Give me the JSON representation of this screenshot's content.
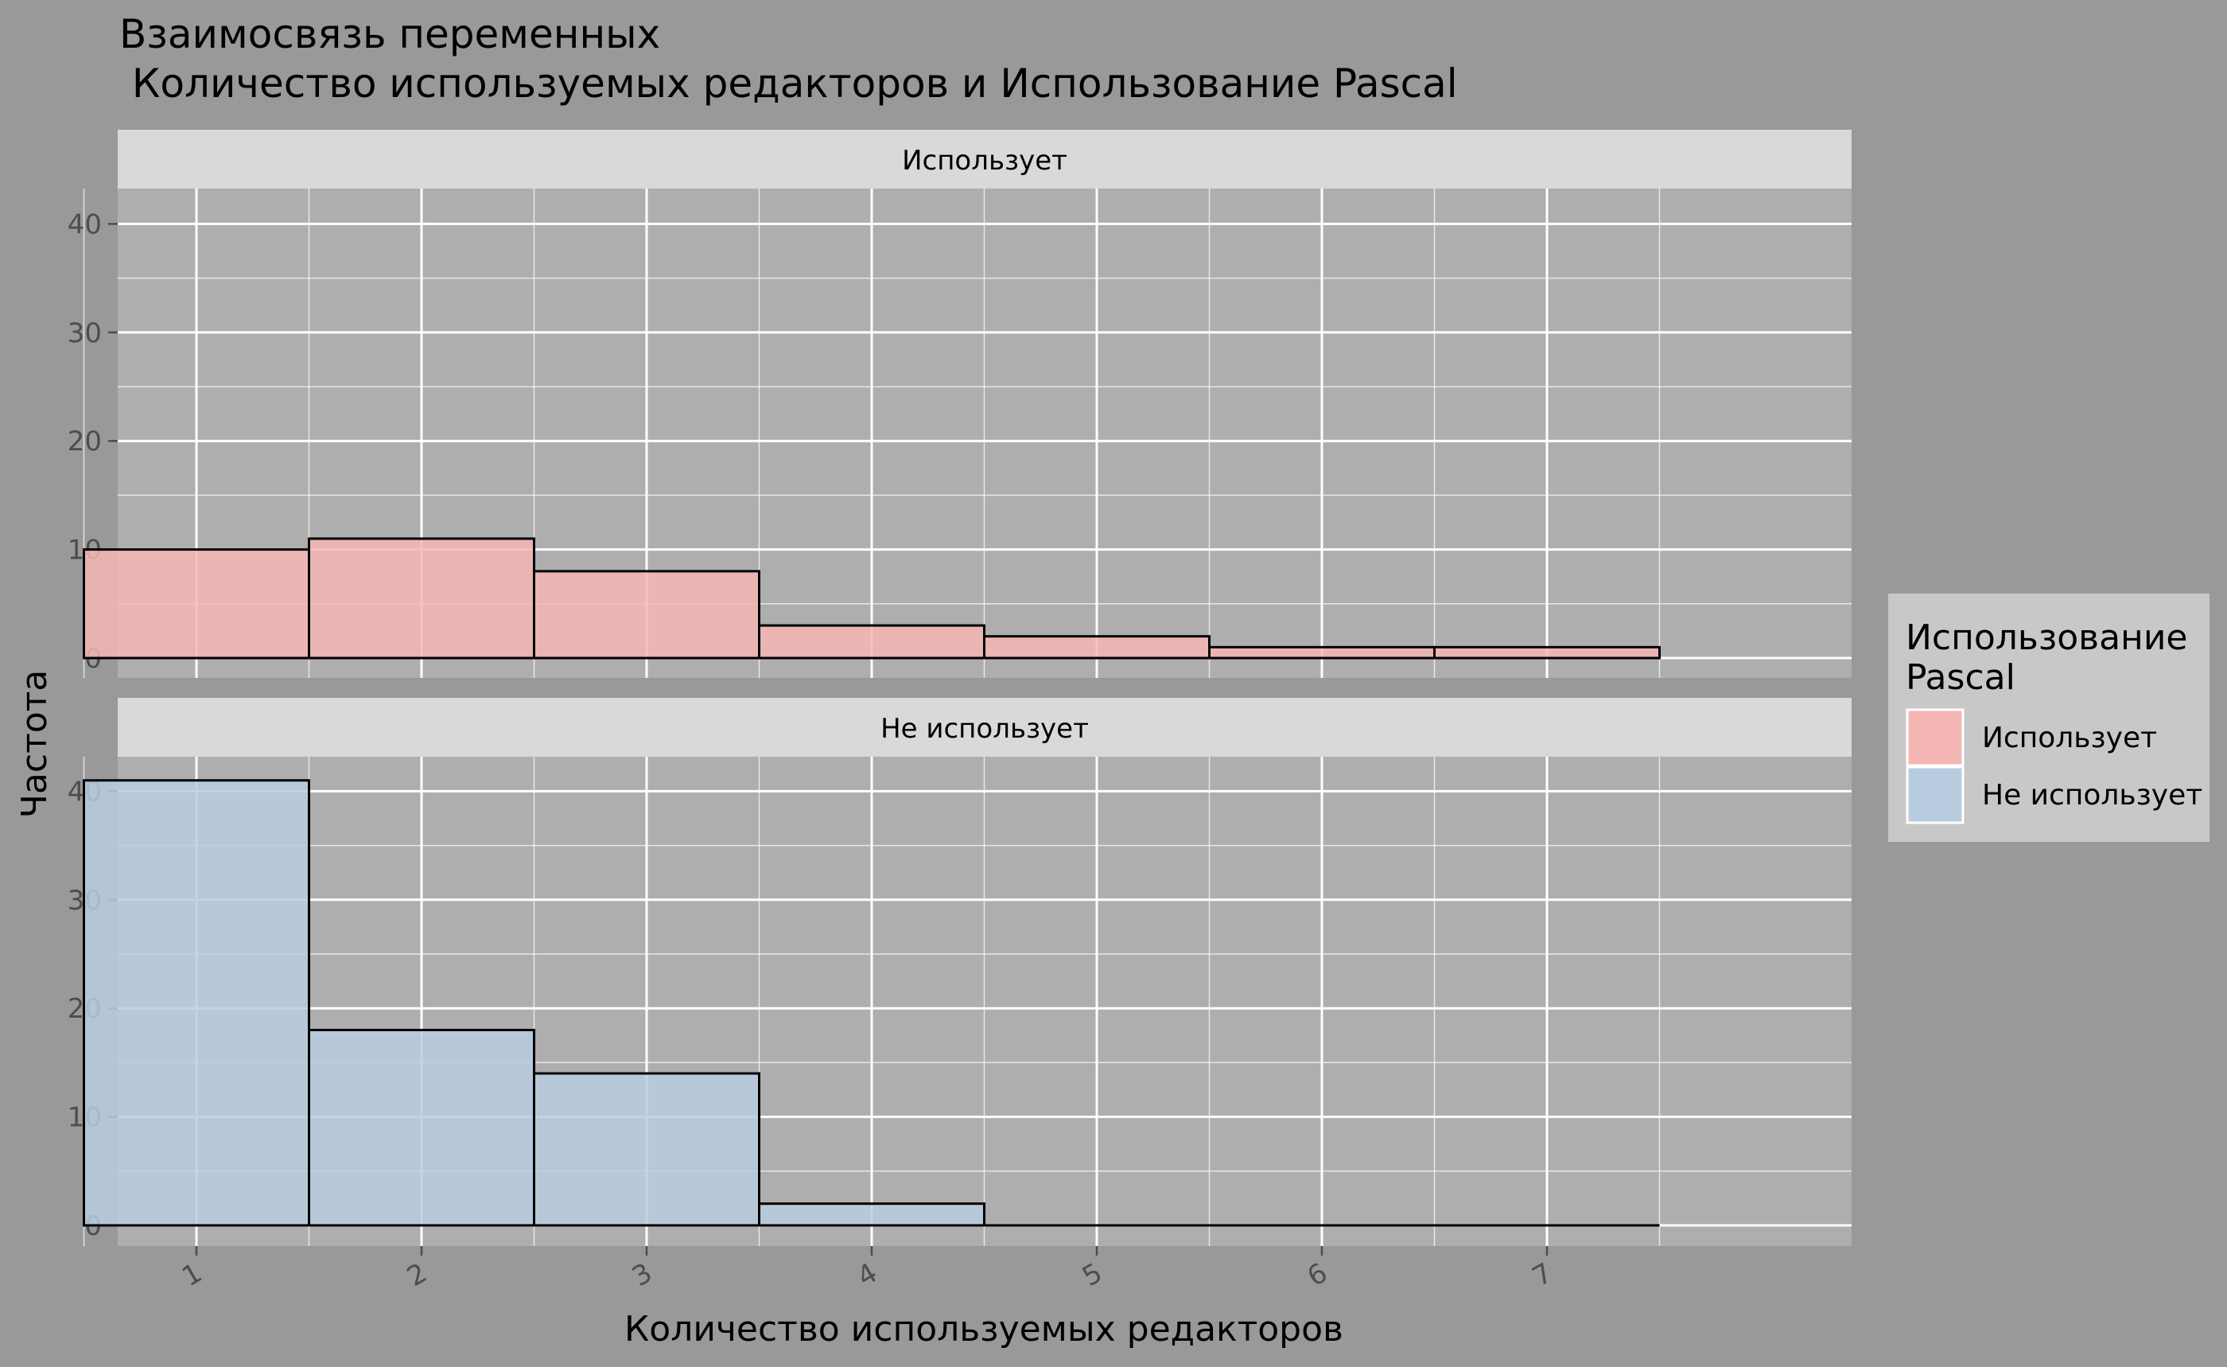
{
  "chart_data": {
    "type": "bar",
    "title": "Взаимосвязь переменных\n Количество используемых редакторов и Использование Pascal",
    "xlabel": "Количество используемых редакторов",
    "ylabel": "Частота",
    "categories": [
      "1",
      "2",
      "3",
      "4",
      "5",
      "6",
      "7"
    ],
    "x": [
      1,
      2,
      3,
      4,
      5,
      6,
      7
    ],
    "ylim": [
      0,
      43
    ],
    "yticks": [
      0,
      10,
      20,
      30,
      40
    ],
    "grid": true,
    "legend_position": "right",
    "legend_title": "Использование\nPascal",
    "facets": [
      {
        "label": "Использует",
        "series": "Использует"
      },
      {
        "label": "Не использует",
        "series": "Не использует"
      }
    ],
    "series": [
      {
        "name": "Использует",
        "color": "#F4B6B3",
        "values": [
          10,
          11,
          8,
          3,
          2,
          1,
          1
        ]
      },
      {
        "name": "Не использует",
        "color": "#B8CCDF",
        "values": [
          41,
          18,
          14,
          2,
          0,
          0,
          0
        ]
      }
    ]
  },
  "colors": {
    "background": "#999999",
    "panel": "#AEAEAE",
    "strip": "#D9D9D9",
    "legend_box": "#C8C8C8",
    "grid": "#FFFFFF",
    "text": "#000000",
    "tick_text": "#4D4D4D"
  }
}
